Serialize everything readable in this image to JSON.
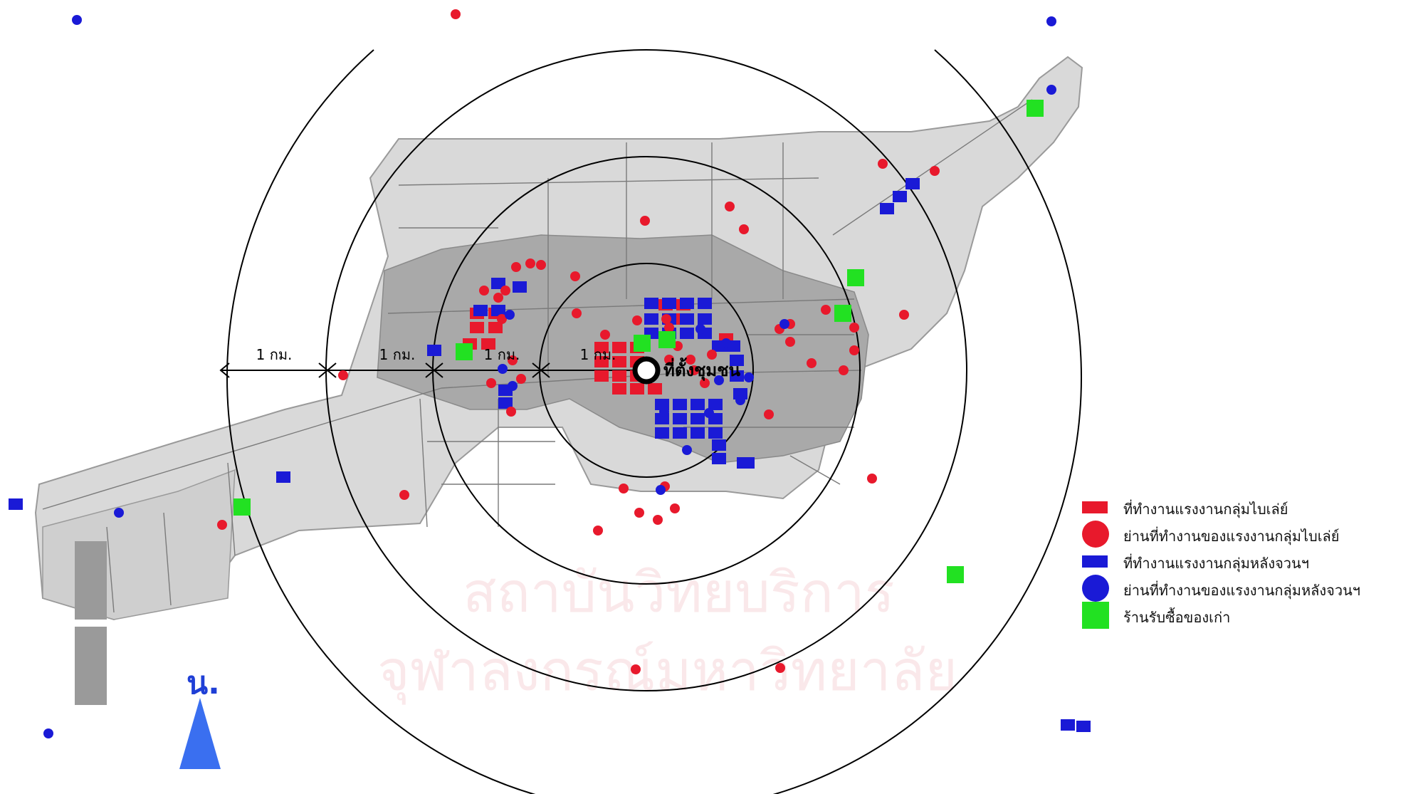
{
  "colors": {
    "map_base": "#d9d9d9",
    "map_dark": "#a9a9a9",
    "map_roads": "#7a7a7a",
    "ring": "#000000",
    "bike_red": "#e8192c",
    "bulk_blue": "#1a1ad6",
    "shop_green": "#22e122",
    "north_blue": "#3a6ff0",
    "watermark": "#f6d7da"
  },
  "map": {
    "center_label": "ที่ตั้งชุมชน",
    "distance_labels": [
      "1 กม.",
      "1 กม.",
      "1 กม.",
      "1 กม."
    ],
    "north_label": "น.",
    "watermark_lines": [
      "สถาบันวิทยบริการ",
      "จุฬาลงกรณ์มหาวิทยาลัย"
    ]
  },
  "legend": {
    "items": [
      {
        "shape": "rect",
        "color": "#e8192c",
        "label": "ที่ทำงานแรงงานกลุ่มไบเล่ย์",
        "icon": "red-rect-icon"
      },
      {
        "shape": "circle",
        "color": "#e8192c",
        "label": "ย่านที่ทำงานของแรงงานกลุ่มไบเล่ย์",
        "icon": "red-circle-icon"
      },
      {
        "shape": "rect",
        "color": "#1a1ad6",
        "label": "ที่ทำงานแรงงานกลุ่มหลังจวนฯ",
        "icon": "blue-rect-icon"
      },
      {
        "shape": "circle",
        "color": "#1a1ad6",
        "label": "ย่านที่ทำงานของแรงงานกลุ่มหลังจวนฯ",
        "icon": "blue-circle-icon"
      },
      {
        "shape": "square",
        "color": "#22e122",
        "label": "ร้านรับซื้อของเก่า",
        "icon": "green-square-icon"
      }
    ]
  }
}
